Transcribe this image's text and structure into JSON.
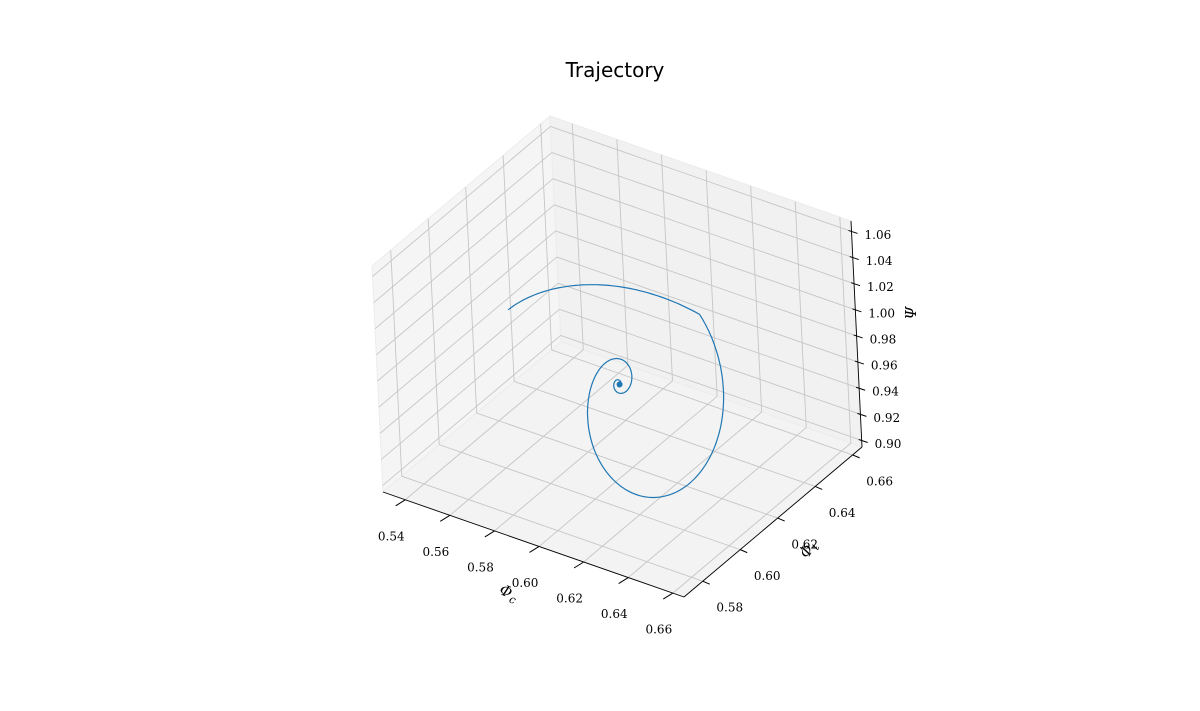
{
  "chart_data": {
    "type": "line",
    "projection": "3d",
    "title": "Trajectory",
    "xlabel": "Φ_c",
    "ylabel": "Φ_t",
    "zlabel": "Ψ",
    "xlim": [
      0.53,
      0.665
    ],
    "ylim": [
      0.57,
      0.665
    ],
    "zlim": [
      0.895,
      1.068
    ],
    "x_ticks": [
      "0.54",
      "0.56",
      "0.58",
      "0.60",
      "0.62",
      "0.64",
      "0.66"
    ],
    "y_ticks": [
      "0.58",
      "0.60",
      "0.62",
      "0.64",
      "0.66"
    ],
    "z_ticks": [
      "0.90",
      "0.92",
      "0.94",
      "0.96",
      "0.98",
      "1.00",
      "1.02",
      "1.04",
      "1.06"
    ],
    "grid": true,
    "series_color": "#1f77b4",
    "series": [
      {
        "description": "damped spiral converging to a fixed point",
        "start": [
          0.56,
          0.605,
          1.01
        ],
        "center": [
          0.5985,
          0.6165,
          0.962
        ],
        "decay": 0.26,
        "turns": 6
      }
    ]
  }
}
